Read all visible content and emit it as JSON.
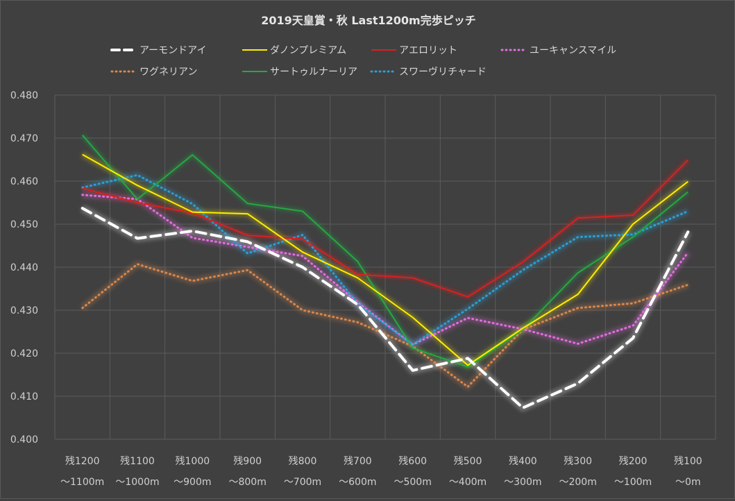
{
  "chart_data": {
    "type": "line",
    "title": "2019天皇賞・秋 Last1200m完歩ピッチ",
    "xlabel": "",
    "ylabel": "",
    "ylim": [
      0.4,
      0.48
    ],
    "yticks": [
      "0.400",
      "0.410",
      "0.420",
      "0.430",
      "0.440",
      "0.450",
      "0.460",
      "0.470",
      "0.480"
    ],
    "grid": true,
    "legend_position": "top",
    "categories": [
      {
        "top": "残1200",
        "bottom": "～1100m"
      },
      {
        "top": "残1100",
        "bottom": "～1000m"
      },
      {
        "top": "残1000",
        "bottom": "～900m"
      },
      {
        "top": "残900",
        "bottom": "～800m"
      },
      {
        "top": "残800",
        "bottom": "～700m"
      },
      {
        "top": "残700",
        "bottom": "～600m"
      },
      {
        "top": "残600",
        "bottom": "～500m"
      },
      {
        "top": "残500",
        "bottom": "～400m"
      },
      {
        "top": "残400",
        "bottom": "～300m"
      },
      {
        "top": "残300",
        "bottom": "～200m"
      },
      {
        "top": "残200",
        "bottom": "～100m"
      },
      {
        "top": "残100",
        "bottom": "～0m"
      }
    ],
    "series": [
      {
        "name": "アーモンドアイ",
        "color": "#ffffff",
        "style": "dash",
        "values": [
          0.4537,
          0.4467,
          0.4484,
          0.4459,
          0.44,
          0.4313,
          0.416,
          0.4188,
          0.4073,
          0.413,
          0.4235,
          0.4482
        ]
      },
      {
        "name": "ダノンプレミアム",
        "color": "#ffee00",
        "style": "solid",
        "values": [
          0.4662,
          0.459,
          0.4528,
          0.4524,
          0.4435,
          0.4375,
          0.4283,
          0.4172,
          0.4258,
          0.4337,
          0.45,
          0.4599
        ]
      },
      {
        "name": "アエロリット",
        "color": "#dd1f1f",
        "style": "solid",
        "values": [
          0.4583,
          0.455,
          0.4526,
          0.4474,
          0.4465,
          0.4383,
          0.4375,
          0.4331,
          0.4412,
          0.4514,
          0.4521,
          0.4649
        ]
      },
      {
        "name": "ユーキャンスマイル",
        "color": "#e36fe0",
        "style": "dot",
        "values": [
          0.4568,
          0.4558,
          0.4468,
          0.4447,
          0.4426,
          0.4318,
          0.422,
          0.4282,
          0.4256,
          0.4222,
          0.4264,
          0.4434
        ]
      },
      {
        "name": "ワグネリアン",
        "color": "#d9884e",
        "style": "dot",
        "values": [
          0.4305,
          0.4407,
          0.4368,
          0.4393,
          0.43,
          0.4272,
          0.4216,
          0.4122,
          0.4255,
          0.4305,
          0.4316,
          0.4359
        ]
      },
      {
        "name": "サートゥルナーリア",
        "color": "#26a843",
        "style": "solid",
        "values": [
          0.4707,
          0.4558,
          0.4661,
          0.4548,
          0.453,
          0.4413,
          0.4212,
          0.4168,
          0.4255,
          0.4387,
          0.447,
          0.4575
        ]
      },
      {
        "name": "スワーヴリチャード",
        "color": "#2aa0d6",
        "style": "dot",
        "values": [
          0.4585,
          0.4614,
          0.4547,
          0.4432,
          0.4475,
          0.4315,
          0.422,
          0.4303,
          0.4393,
          0.447,
          0.4476,
          0.453
        ]
      }
    ]
  }
}
